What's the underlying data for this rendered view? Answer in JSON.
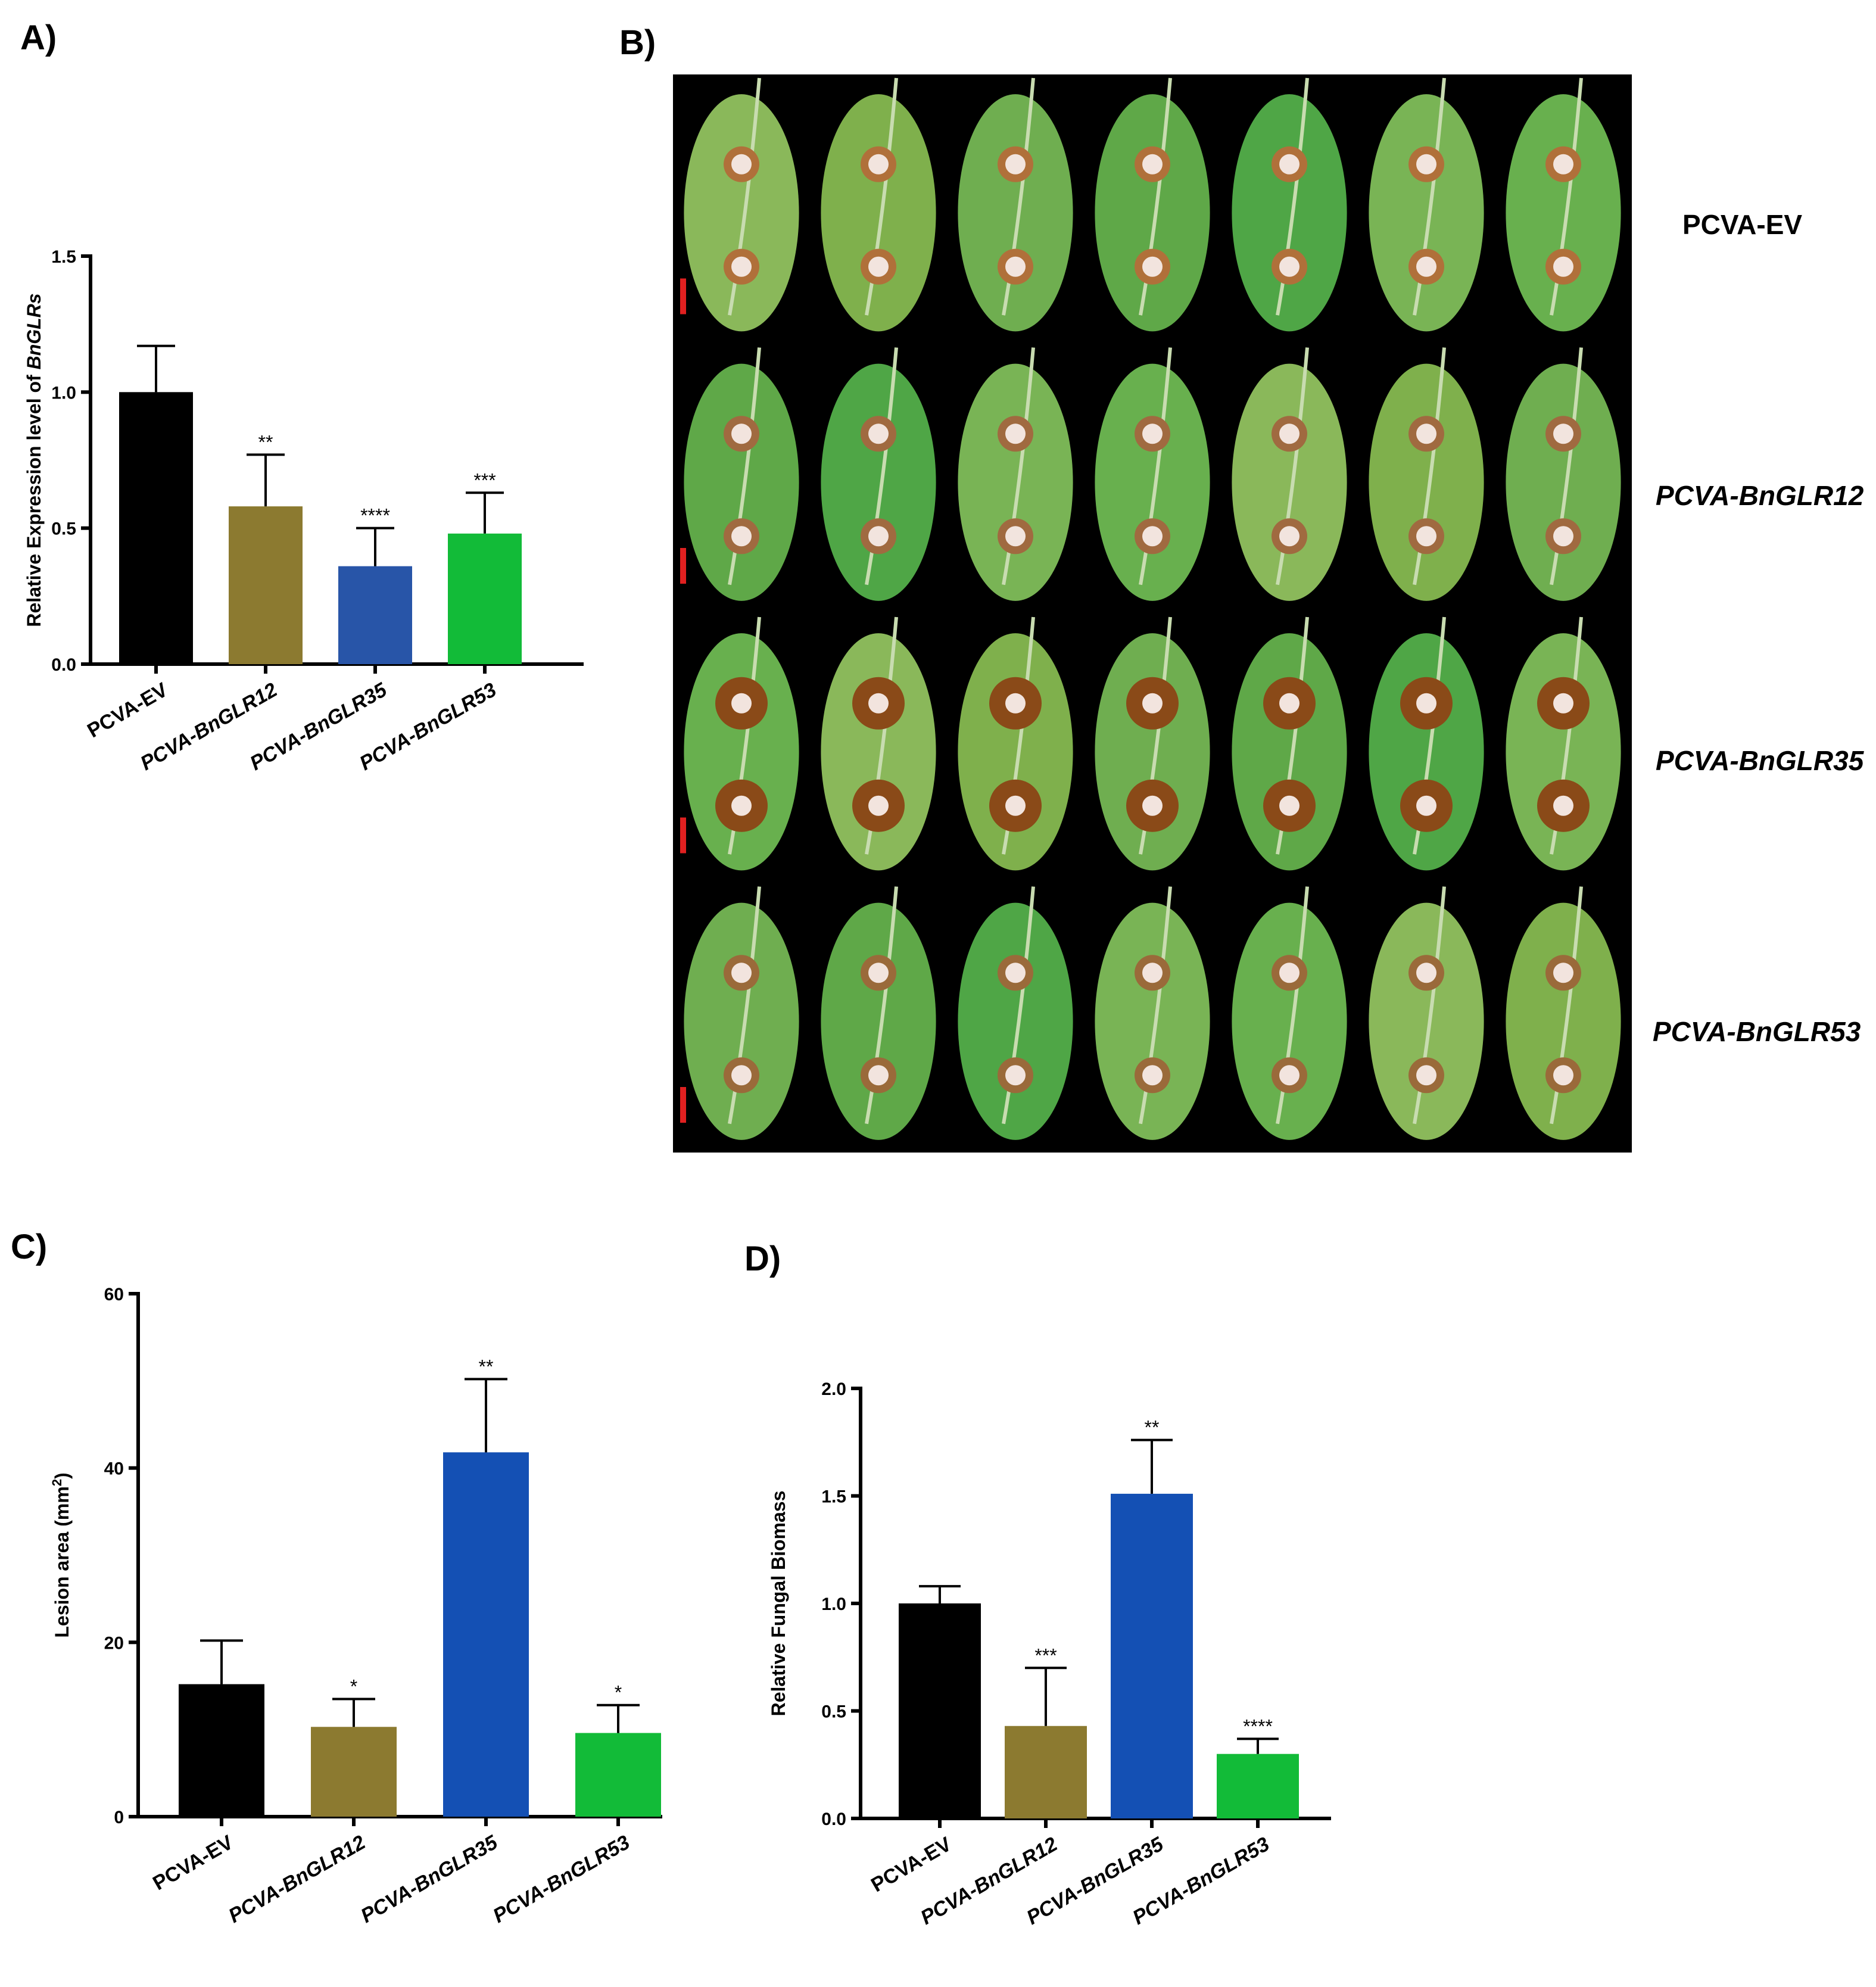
{
  "panels": {
    "a_label": "A)",
    "b_label": "B)",
    "c_label": "C)",
    "d_label": "D)"
  },
  "photo": {
    "rows": [
      {
        "label": "PCVA-EV",
        "italic": false,
        "lesion_color": "#b0703a"
      },
      {
        "label": "PCVA-BnGLR12",
        "italic": true,
        "lesion_color": "#a06a40"
      },
      {
        "label": "PCVA-BnGLR35",
        "italic": true,
        "lesion_color": "#8a4a18"
      },
      {
        "label": "PCVA-BnGLR53",
        "italic": true,
        "lesion_color": "#9a6a3a"
      }
    ],
    "leaves_per_row": 7,
    "background": "#000000",
    "scale_bar_color": "#e02020"
  },
  "chart_data": [
    {
      "id": "A",
      "type": "bar",
      "categories": [
        "PCVA-EV",
        "PCVA-BnGLR12",
        "PCVA-BnGLR35",
        "PCVA-BnGLR53"
      ],
      "italic_categories": [
        false,
        true,
        true,
        true
      ],
      "values": [
        1.0,
        0.58,
        0.36,
        0.48
      ],
      "errors": [
        0.17,
        0.19,
        0.14,
        0.15
      ],
      "significance": [
        "",
        "**",
        "****",
        "***"
      ],
      "colors": [
        "#000000",
        "#8c7a30",
        "#2855a8",
        "#12bb38"
      ],
      "ylabel_parts": [
        "Relative Expression level of ",
        "BnGLRs"
      ],
      "ylim": [
        0,
        1.5
      ],
      "yticks": [
        "0.0",
        "0.5",
        "1.0",
        "1.5"
      ]
    },
    {
      "id": "C",
      "type": "bar",
      "categories": [
        "PCVA-EV",
        "PCVA-BnGLR12",
        "PCVA-BnGLR35",
        "PCVA-BnGLR53"
      ],
      "italic_categories": [
        false,
        true,
        true,
        true
      ],
      "values": [
        15.2,
        10.3,
        41.8,
        9.6
      ],
      "errors": [
        5.0,
        3.2,
        8.4,
        3.2
      ],
      "significance": [
        "",
        "*",
        "**",
        "*"
      ],
      "colors": [
        "#000000",
        "#8c7a30",
        "#1450b4",
        "#12bb38"
      ],
      "ylabel_parts": [
        "Lesion area (mm",
        "2",
        ")"
      ],
      "ylim": [
        0,
        60
      ],
      "yticks": [
        "0",
        "20",
        "40",
        "60"
      ]
    },
    {
      "id": "D",
      "type": "bar",
      "categories": [
        "PCVA-EV",
        "PCVA-BnGLR12",
        "PCVA-BnGLR35",
        "PCVA-BnGLR53"
      ],
      "italic_categories": [
        false,
        true,
        true,
        true
      ],
      "values": [
        1.0,
        0.43,
        1.51,
        0.3
      ],
      "errors": [
        0.08,
        0.27,
        0.25,
        0.07
      ],
      "significance": [
        "",
        "***",
        "**",
        "****"
      ],
      "colors": [
        "#000000",
        "#8c7a30",
        "#1450b4",
        "#12bb38"
      ],
      "ylabel_parts": [
        "Relative Fungal Biomass"
      ],
      "ylim": [
        0,
        2.0
      ],
      "yticks": [
        "0.0",
        "0.5",
        "1.0",
        "1.5",
        "2.0"
      ]
    }
  ]
}
